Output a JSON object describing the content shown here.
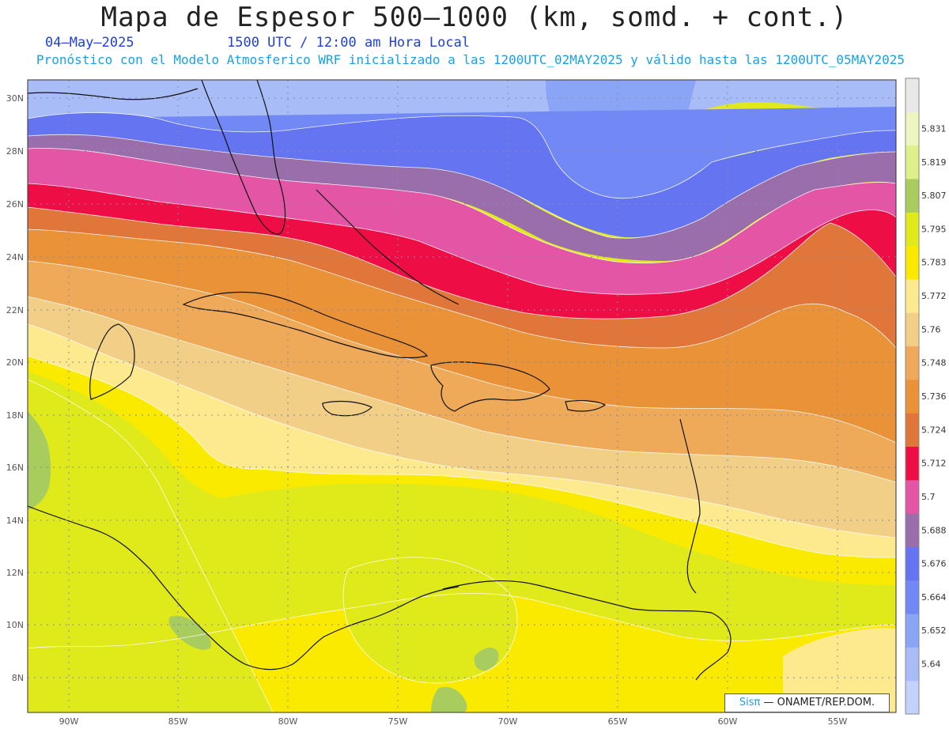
{
  "title": "Mapa de Espesor 500—1000 (km, somd. + cont.)",
  "date_text": "04—May—2025",
  "time_text": "1500 UTC / 12:00 am Hora Local",
  "model_text": "Pronóstico con el Modelo Atmosferico WRF inicializado a las 1200UTC_02MAY2025 y válido hasta las  1200UTC_05MAY2025",
  "credit": {
    "brand": "Sisπ",
    "rest": "— ONAMET/REP.DOM."
  },
  "map": {
    "lat_labels": [
      "30N",
      "28N",
      "26N",
      "24N",
      "22N",
      "20N",
      "18N",
      "16N",
      "14N",
      "12N",
      "10N",
      "8N"
    ],
    "lon_labels": [
      "90W",
      "85W",
      "80W",
      "75W",
      "70W",
      "65W",
      "60W",
      "55W"
    ]
  },
  "legend": {
    "levels": [
      "5.64",
      "5.652",
      "5.664",
      "5.676",
      "5.688",
      "5.7",
      "5.712",
      "5.724",
      "5.736",
      "5.748",
      "5.76",
      "5.772",
      "5.783",
      "5.795",
      "5.807",
      "5.819",
      "5.831"
    ],
    "colors": [
      "#c3d2fa",
      "#a8bcf7",
      "#8aa5f5",
      "#7289f5",
      "#6574f0",
      "#9a6eaa",
      "#e455a6",
      "#ee0d44",
      "#e0763a",
      "#e99238",
      "#eeaa58",
      "#f2cf86",
      "#fdea8f",
      "#faea00",
      "#e0ea1a",
      "#a8cc5e",
      "#ddf08a",
      "#eef6c0",
      "#e8e8e8"
    ]
  }
}
